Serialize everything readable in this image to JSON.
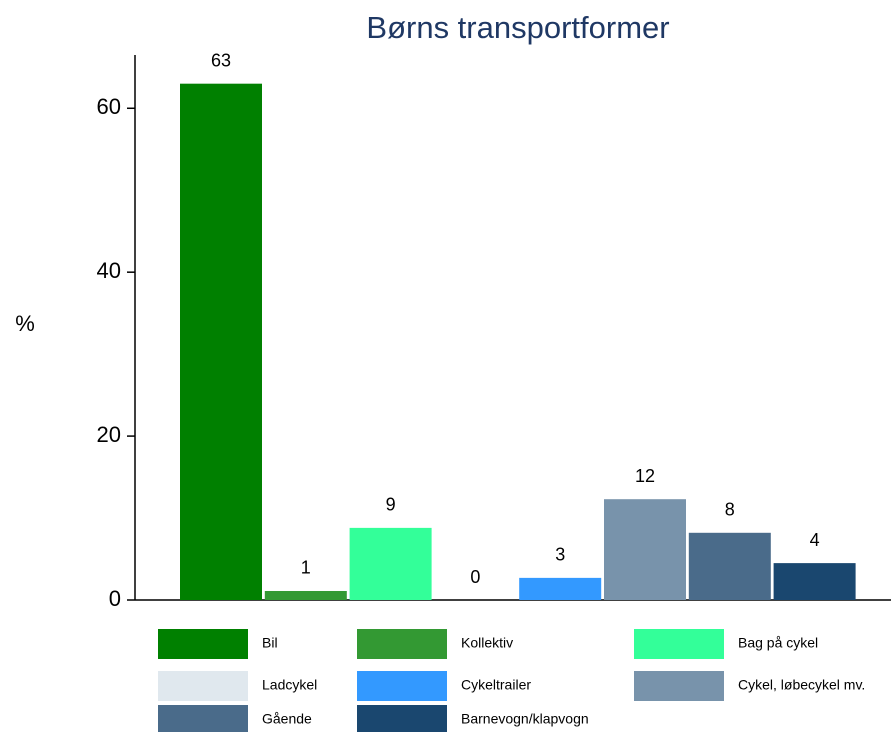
{
  "chart_data": {
    "type": "bar",
    "title": "Børns transportformer",
    "y_label": "%",
    "ylim": [
      0,
      66.5
    ],
    "yticks": [
      0,
      20,
      40,
      60
    ],
    "series": [
      {
        "name": "Bil",
        "color": "#008000",
        "values": [
          63
        ],
        "value_labels": [
          "63"
        ]
      },
      {
        "name": "Kollektiv",
        "color": "#339933",
        "values": [
          1.1
        ],
        "value_labels": [
          "1"
        ]
      },
      {
        "name": "Bag på cykel",
        "color": "#33ff99",
        "values": [
          8.8
        ],
        "value_labels": [
          "9"
        ]
      },
      {
        "name": "Ladcykel",
        "color": "#e0e8ee",
        "values": [
          0
        ],
        "value_labels": [
          "0"
        ]
      },
      {
        "name": "Cykeltrailer",
        "color": "#3399ff",
        "values": [
          2.7
        ],
        "value_labels": [
          "3"
        ]
      },
      {
        "name": "Cykel, løbecykel mv.",
        "color": "#7893ab",
        "values": [
          12.3
        ],
        "value_labels": [
          "12"
        ]
      },
      {
        "name": "Gående",
        "color": "#4a6b8a",
        "values": [
          8.2
        ],
        "value_labels": [
          "8"
        ]
      },
      {
        "name": "Barnevogn/klapvogn",
        "color": "#1a476f",
        "values": [
          4.5
        ],
        "value_labels": [
          "4"
        ]
      }
    ]
  }
}
